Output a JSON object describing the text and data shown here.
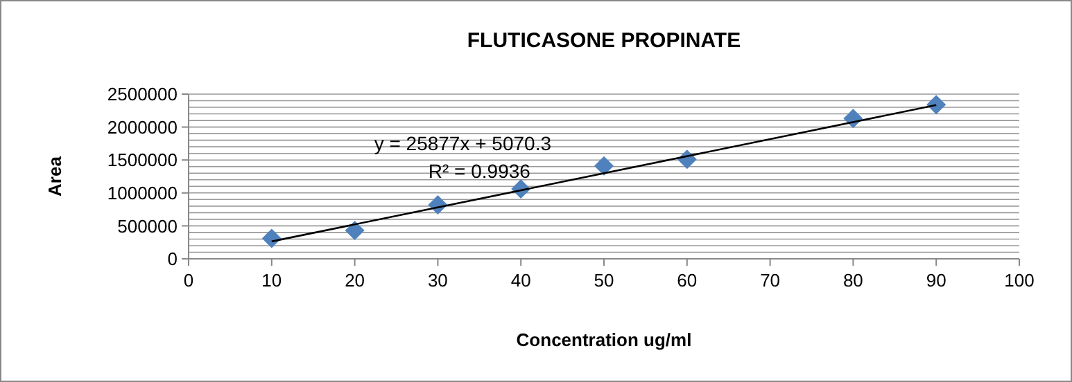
{
  "chart_data": {
    "type": "scatter",
    "title": "FLUTICASONE PROPINATE",
    "xlabel": "Concentration ug/ml",
    "ylabel": "Area",
    "x": [
      10,
      20,
      30,
      40,
      50,
      60,
      80,
      90
    ],
    "series": [
      {
        "type": "scatter",
        "color": "#4f81bd",
        "marker": "diamond",
        "values": [
          310000,
          430000,
          820000,
          1060000,
          1410000,
          1510000,
          2130000,
          2340000
        ]
      },
      {
        "type": "line",
        "color": "#000000",
        "marker": "none",
        "x": [
          10,
          90
        ],
        "values": [
          264000,
          2334000
        ]
      }
    ],
    "annotations": [
      "y = 25877x + 5070.3",
      "R² = 0.9936"
    ],
    "xlim": [
      0,
      100
    ],
    "xticks": [
      0,
      10,
      20,
      30,
      40,
      50,
      60,
      70,
      80,
      90,
      100
    ],
    "ylim": [
      0,
      2500000
    ],
    "yticks": [
      0,
      {
        "value": 100000,
        "label": null
      },
      {
        "value": 200000,
        "label": null
      },
      {
        "value": 300000,
        "label": null
      },
      {
        "value": 400000,
        "label": null
      },
      500000,
      {
        "value": 600000,
        "label": null
      },
      {
        "value": 700000,
        "label": null
      },
      {
        "value": 800000,
        "label": null
      },
      {
        "value": 900000,
        "label": null
      },
      1000000,
      {
        "value": 1100000,
        "label": null
      },
      {
        "value": 1200000,
        "label": null
      },
      {
        "value": 1300000,
        "label": null
      },
      {
        "value": 1400000,
        "label": null
      },
      1500000,
      {
        "value": 1600000,
        "label": null
      },
      {
        "value": 1700000,
        "label": null
      },
      {
        "value": 1800000,
        "label": null
      },
      {
        "value": 1900000,
        "label": null
      },
      2000000,
      {
        "value": 2100000,
        "label": null
      },
      {
        "value": 2200000,
        "label": null
      },
      {
        "value": 2300000,
        "label": null
      },
      {
        "value": 2400000,
        "label": null
      },
      2500000
    ],
    "grid": "y"
  }
}
